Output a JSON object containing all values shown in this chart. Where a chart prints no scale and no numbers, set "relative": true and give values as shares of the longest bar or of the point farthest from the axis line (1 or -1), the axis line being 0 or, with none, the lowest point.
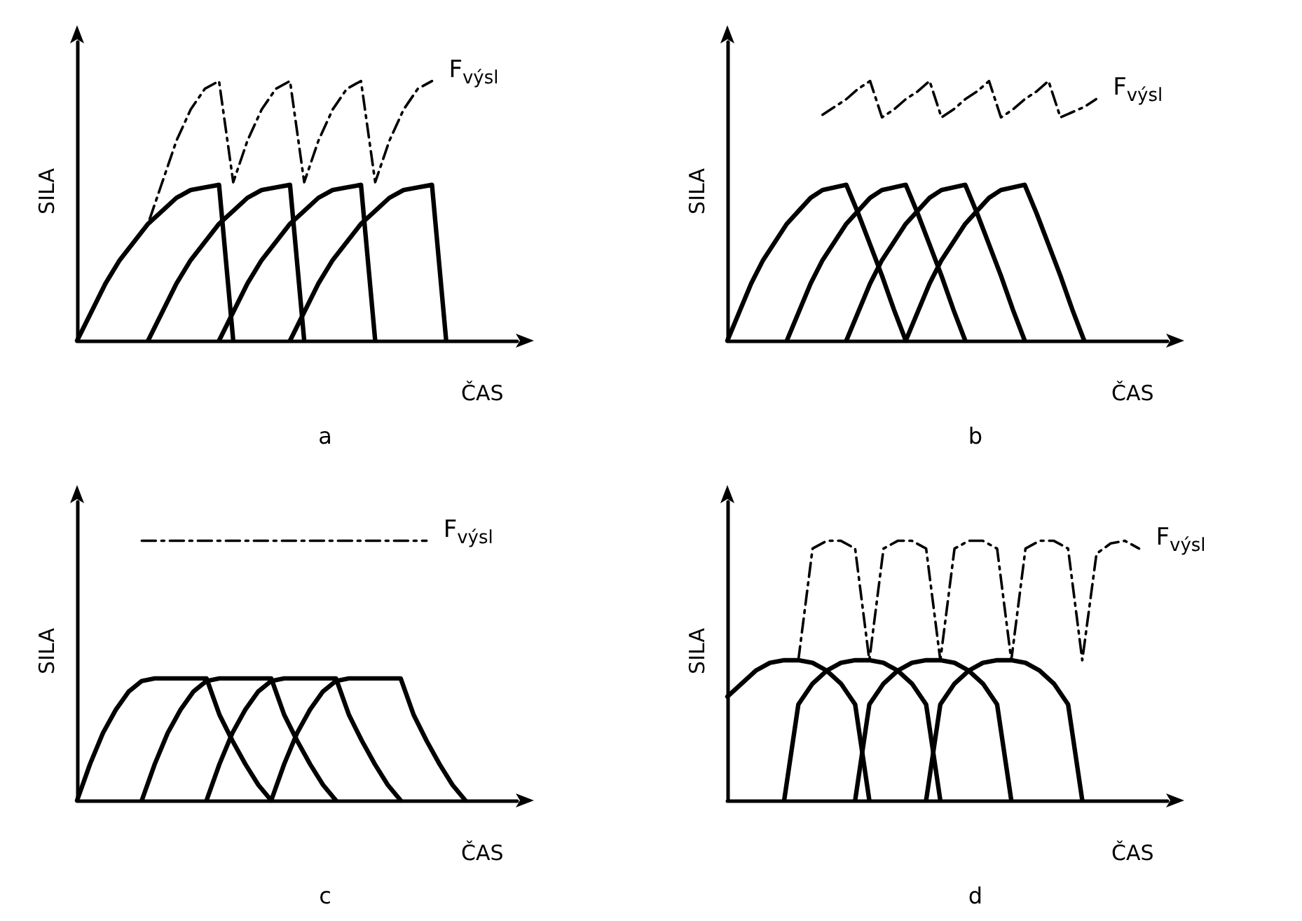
{
  "chart_data": [
    {
      "type": "line",
      "title": "a",
      "xlabel": "ČAS",
      "ylabel": "SILA",
      "relative": true,
      "legend": false,
      "grid": false,
      "marker": "none",
      "categories": [
        null,
        null,
        null,
        null,
        null,
        null,
        null,
        null,
        null,
        null,
        null,
        null,
        null,
        null,
        null,
        null,
        null,
        null,
        null,
        null,
        null,
        null,
        null,
        null,
        null,
        null,
        null,
        null,
        null,
        null,
        null,
        null
      ],
      "series": [
        {
          "color": "#000000",
          "line_style": "solid",
          "values": [
            0,
            0.11,
            0.22,
            0.31,
            0.38,
            0.45,
            0.5,
            0.55,
            0.58,
            0.59,
            0.6,
            0,
            null,
            null,
            null,
            null,
            null,
            null,
            null,
            null,
            null,
            null,
            null,
            null,
            null,
            null,
            null,
            null,
            null,
            null,
            null,
            null
          ]
        },
        {
          "color": "#000000",
          "line_style": "solid",
          "values": [
            null,
            null,
            null,
            null,
            null,
            0,
            0.11,
            0.22,
            0.31,
            0.38,
            0.45,
            0.5,
            0.55,
            0.58,
            0.59,
            0.6,
            0,
            null,
            null,
            null,
            null,
            null,
            null,
            null,
            null,
            null,
            null,
            null,
            null,
            null,
            null,
            null
          ]
        },
        {
          "color": "#000000",
          "line_style": "solid",
          "values": [
            null,
            null,
            null,
            null,
            null,
            null,
            null,
            null,
            null,
            null,
            0,
            0.11,
            0.22,
            0.31,
            0.38,
            0.45,
            0.5,
            0.55,
            0.58,
            0.59,
            0.6,
            0,
            null,
            null,
            null,
            null,
            null,
            null,
            null,
            null,
            null,
            null
          ]
        },
        {
          "color": "#000000",
          "line_style": "solid",
          "values": [
            null,
            null,
            null,
            null,
            null,
            null,
            null,
            null,
            null,
            null,
            null,
            null,
            null,
            null,
            null,
            0,
            0.11,
            0.22,
            0.31,
            0.38,
            0.45,
            0.5,
            0.55,
            0.58,
            0.59,
            0.6,
            0,
            null,
            null,
            null,
            null,
            null
          ]
        },
        {
          "name": "F$_{výsl}$",
          "color": "#000000",
          "line_style": "dashed",
          "values": [
            null,
            null,
            null,
            null,
            0.38,
            0.45,
            0.61,
            0.77,
            0.89,
            0.97,
            1,
            0.61,
            0.77,
            0.89,
            0.97,
            1,
            0.61,
            0.77,
            0.89,
            0.97,
            1,
            0.61,
            0.77,
            0.89,
            0.97,
            1,
            null,
            null,
            null,
            null,
            null,
            null
          ]
        }
      ]
    },
    {
      "type": "line",
      "title": "b",
      "xlabel": "ČAS",
      "ylabel": "SILA",
      "relative": true,
      "legend": false,
      "grid": false,
      "marker": "none",
      "categories": [
        null,
        null,
        null,
        null,
        null,
        null,
        null,
        null,
        null,
        null,
        null,
        null,
        null,
        null,
        null,
        null,
        null,
        null,
        null,
        null,
        null,
        null,
        null,
        null,
        null,
        null,
        null,
        null,
        null,
        null,
        null,
        null,
        null,
        null,
        null,
        null,
        null,
        null
      ],
      "series": [
        {
          "color": "#000000",
          "line_style": "solid",
          "values": [
            0,
            0.11,
            0.22,
            0.31,
            0.38,
            0.45,
            0.5,
            0.55,
            0.58,
            0.59,
            0.6,
            0.49,
            0.37,
            0.25,
            0.12,
            0,
            null,
            null,
            null,
            null,
            null,
            null,
            null,
            null,
            null,
            null,
            null,
            null,
            null,
            null,
            null,
            null,
            null,
            null,
            null,
            null,
            null,
            null
          ]
        },
        {
          "color": "#000000",
          "line_style": "solid",
          "values": [
            null,
            null,
            null,
            null,
            null,
            0,
            0.11,
            0.22,
            0.31,
            0.38,
            0.45,
            0.5,
            0.55,
            0.58,
            0.59,
            0.6,
            0.49,
            0.37,
            0.25,
            0.12,
            0,
            null,
            null,
            null,
            null,
            null,
            null,
            null,
            null,
            null,
            null,
            null,
            null,
            null,
            null,
            null,
            null,
            null
          ]
        },
        {
          "color": "#000000",
          "line_style": "solid",
          "values": [
            null,
            null,
            null,
            null,
            null,
            null,
            null,
            null,
            null,
            null,
            0,
            0.11,
            0.22,
            0.31,
            0.38,
            0.45,
            0.5,
            0.55,
            0.58,
            0.59,
            0.6,
            0.49,
            0.37,
            0.25,
            0.12,
            0,
            null,
            null,
            null,
            null,
            null,
            null,
            null,
            null,
            null,
            null,
            null,
            null
          ]
        },
        {
          "color": "#000000",
          "line_style": "solid",
          "values": [
            null,
            null,
            null,
            null,
            null,
            null,
            null,
            null,
            null,
            null,
            null,
            null,
            null,
            null,
            null,
            0,
            0.11,
            0.22,
            0.31,
            0.38,
            0.45,
            0.5,
            0.55,
            0.58,
            0.59,
            0.6,
            0.49,
            0.37,
            0.25,
            0.12,
            0,
            null,
            null,
            null,
            null,
            null,
            null,
            null
          ]
        },
        {
          "name": "F$_{výsl}$",
          "color": "#000000",
          "line_style": "dashed",
          "values": [
            null,
            null,
            null,
            null,
            null,
            null,
            null,
            null,
            0.87,
            0.9,
            0.93,
            0.97,
            1,
            0.86,
            0.89,
            0.93,
            0.96,
            1,
            0.86,
            0.89,
            0.93,
            0.96,
            1,
            0.86,
            0.89,
            0.93,
            0.96,
            1,
            0.86,
            0.88,
            0.9,
            0.93,
            null,
            null,
            null,
            null,
            null,
            null
          ]
        }
      ]
    },
    {
      "type": "line",
      "title": "c",
      "xlabel": "ČAS",
      "ylabel": "SILA",
      "relative": true,
      "legend": false,
      "grid": false,
      "marker": "none",
      "categories": [
        null,
        null,
        null,
        null,
        null,
        null,
        null,
        null,
        null,
        null,
        null,
        null,
        null,
        null,
        null,
        null,
        null,
        null,
        null,
        null,
        null,
        null,
        null,
        null,
        null,
        null,
        null,
        null,
        null,
        null,
        null,
        null,
        null,
        null,
        null
      ],
      "series": [
        {
          "color": "#000000",
          "line_style": "solid",
          "values": [
            0,
            0.14,
            0.26,
            0.35,
            0.42,
            0.46,
            0.47,
            0.47,
            0.47,
            0.47,
            0.47,
            0.33,
            0.23,
            0.14,
            0.06,
            0,
            null,
            null,
            null,
            null,
            null,
            null,
            null,
            null,
            null,
            null,
            null,
            null,
            null,
            null,
            null,
            null,
            null,
            null,
            null
          ]
        },
        {
          "color": "#000000",
          "line_style": "solid",
          "values": [
            null,
            null,
            null,
            null,
            null,
            0,
            0.14,
            0.26,
            0.35,
            0.42,
            0.46,
            0.47,
            0.47,
            0.47,
            0.47,
            0.47,
            0.33,
            0.23,
            0.14,
            0.06,
            0,
            null,
            null,
            null,
            null,
            null,
            null,
            null,
            null,
            null,
            null,
            null,
            null,
            null,
            null
          ]
        },
        {
          "color": "#000000",
          "line_style": "solid",
          "values": [
            null,
            null,
            null,
            null,
            null,
            null,
            null,
            null,
            null,
            null,
            0,
            0.14,
            0.26,
            0.35,
            0.42,
            0.46,
            0.47,
            0.47,
            0.47,
            0.47,
            0.47,
            0.33,
            0.23,
            0.14,
            0.06,
            0,
            null,
            null,
            null,
            null,
            null,
            null,
            null,
            null,
            null
          ]
        },
        {
          "color": "#000000",
          "line_style": "solid",
          "values": [
            null,
            null,
            null,
            null,
            null,
            null,
            null,
            null,
            null,
            null,
            null,
            null,
            null,
            null,
            null,
            0,
            0.14,
            0.26,
            0.35,
            0.42,
            0.46,
            0.47,
            0.47,
            0.47,
            0.47,
            0.47,
            0.33,
            0.23,
            0.14,
            0.06,
            0,
            null,
            null,
            null,
            null
          ]
        },
        {
          "name": "F$_{výsl}$",
          "color": "#000000",
          "line_style": "dashed",
          "values": [
            null,
            null,
            null,
            null,
            null,
            1,
            1,
            1,
            1,
            1,
            1,
            1,
            1,
            1,
            1,
            1,
            1,
            1,
            1,
            1,
            1,
            1,
            1,
            1,
            1,
            1,
            1,
            1,
            null,
            null,
            null,
            null,
            null,
            null,
            null
          ]
        }
      ]
    },
    {
      "type": "line",
      "title": "d",
      "xlabel": "ČAS",
      "ylabel": "SILA",
      "relative": true,
      "legend": false,
      "grid": false,
      "marker": "none",
      "categories": [
        null,
        null,
        null,
        null,
        null,
        null,
        null,
        null,
        null,
        null,
        null,
        null,
        null,
        null,
        null,
        null,
        null,
        null,
        null,
        null,
        null,
        null,
        null,
        null,
        null,
        null,
        null,
        null,
        null,
        null,
        null,
        null
      ],
      "series": [
        {
          "color": "#000000",
          "line_style": "solid",
          "values": [
            0.4,
            0.45,
            0.5,
            0.53,
            0.54,
            0.54,
            0.53,
            0.5,
            0.45,
            0.37,
            0,
            null,
            null,
            null,
            null,
            null,
            null,
            null,
            null,
            null,
            null,
            null,
            null,
            null,
            null,
            null,
            null,
            null,
            null,
            null,
            null,
            null
          ]
        },
        {
          "color": "#000000",
          "line_style": "solid",
          "values": [
            null,
            null,
            null,
            null,
            0,
            0.37,
            0.45,
            0.5,
            0.53,
            0.54,
            0.54,
            0.53,
            0.5,
            0.45,
            0.37,
            0,
            null,
            null,
            null,
            null,
            null,
            null,
            null,
            null,
            null,
            null,
            null,
            null,
            null,
            null,
            null,
            null
          ]
        },
        {
          "color": "#000000",
          "line_style": "solid",
          "values": [
            null,
            null,
            null,
            null,
            null,
            null,
            null,
            null,
            null,
            0,
            0.37,
            0.45,
            0.5,
            0.53,
            0.54,
            0.54,
            0.53,
            0.5,
            0.45,
            0.37,
            0,
            null,
            null,
            null,
            null,
            null,
            null,
            null,
            null,
            null,
            null,
            null
          ]
        },
        {
          "color": "#000000",
          "line_style": "solid",
          "values": [
            null,
            null,
            null,
            null,
            null,
            null,
            null,
            null,
            null,
            null,
            null,
            null,
            null,
            null,
            0,
            0.37,
            0.45,
            0.5,
            0.53,
            0.54,
            0.54,
            0.53,
            0.5,
            0.45,
            0.37,
            0,
            null,
            null,
            null,
            null,
            null,
            null
          ]
        },
        {
          "name": "F$_{výsl}$",
          "color": "#000000",
          "line_style": "dashed",
          "values": [
            null,
            null,
            null,
            null,
            null,
            0.54,
            0.97,
            1,
            1,
            0.97,
            0.54,
            0.97,
            1,
            1,
            0.97,
            0.54,
            0.97,
            1,
            1,
            0.97,
            0.54,
            0.97,
            1,
            1,
            0.97,
            0.54,
            0.95,
            0.99,
            1,
            0.97,
            null,
            null
          ]
        }
      ]
    }
  ]
}
